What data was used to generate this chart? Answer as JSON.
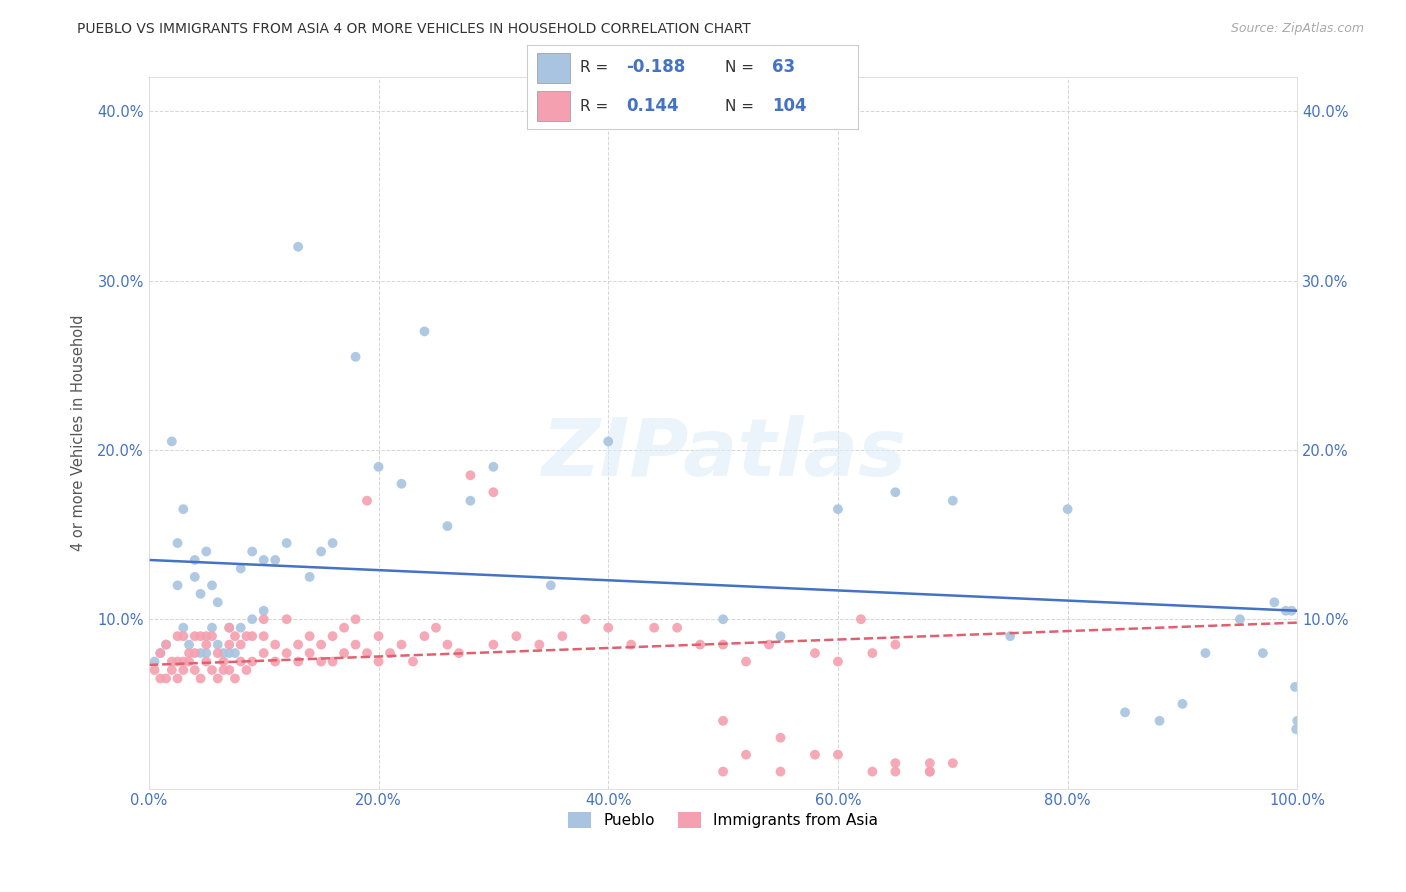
{
  "title": "PUEBLO VS IMMIGRANTS FROM ASIA 4 OR MORE VEHICLES IN HOUSEHOLD CORRELATION CHART",
  "source": "Source: ZipAtlas.com",
  "ylabel": "4 or more Vehicles in Household",
  "watermark": "ZIPatlas",
  "xlim": [
    0.0,
    1.0
  ],
  "ylim": [
    0.0,
    0.42
  ],
  "xtick_vals": [
    0.0,
    0.2,
    0.4,
    0.6,
    0.8,
    1.0
  ],
  "ytick_vals": [
    0.0,
    0.1,
    0.2,
    0.3,
    0.4
  ],
  "xtick_labels": [
    "0.0%",
    "20.0%",
    "40.0%",
    "60.0%",
    "80.0%",
    "100.0%"
  ],
  "ytick_labels": [
    "",
    "10.0%",
    "20.0%",
    "30.0%",
    "40.0%"
  ],
  "pueblo_R": -0.188,
  "pueblo_N": 63,
  "immigrants_R": 0.144,
  "immigrants_N": 104,
  "pueblo_color": "#a8c4e0",
  "immigrants_color": "#f4a0b0",
  "pueblo_line_color": "#4472c4",
  "immigrants_line_color": "#e06070",
  "axis_color": "#4472c4",
  "background_color": "#ffffff",
  "pueblo_line_y0": 0.135,
  "pueblo_line_y1": 0.105,
  "immigrants_line_y0": 0.073,
  "immigrants_line_y1": 0.098,
  "pueblo_x": [
    0.005,
    0.01,
    0.015,
    0.02,
    0.025,
    0.025,
    0.03,
    0.03,
    0.035,
    0.04,
    0.04,
    0.045,
    0.045,
    0.05,
    0.05,
    0.055,
    0.055,
    0.06,
    0.06,
    0.065,
    0.07,
    0.07,
    0.075,
    0.08,
    0.08,
    0.09,
    0.09,
    0.1,
    0.1,
    0.11,
    0.12,
    0.13,
    0.14,
    0.15,
    0.16,
    0.18,
    0.2,
    0.22,
    0.24,
    0.26,
    0.28,
    0.3,
    0.35,
    0.4,
    0.5,
    0.55,
    0.6,
    0.65,
    0.7,
    0.75,
    0.8,
    0.85,
    0.88,
    0.9,
    0.92,
    0.95,
    0.97,
    0.98,
    0.99,
    0.995,
    0.998,
    0.999,
    1.0
  ],
  "pueblo_y": [
    0.075,
    0.08,
    0.085,
    0.205,
    0.145,
    0.12,
    0.165,
    0.095,
    0.085,
    0.135,
    0.125,
    0.115,
    0.08,
    0.14,
    0.08,
    0.12,
    0.095,
    0.11,
    0.085,
    0.08,
    0.08,
    0.095,
    0.08,
    0.13,
    0.095,
    0.14,
    0.1,
    0.135,
    0.105,
    0.135,
    0.145,
    0.32,
    0.125,
    0.14,
    0.145,
    0.255,
    0.19,
    0.18,
    0.27,
    0.155,
    0.17,
    0.19,
    0.12,
    0.205,
    0.1,
    0.09,
    0.165,
    0.175,
    0.17,
    0.09,
    0.165,
    0.045,
    0.04,
    0.05,
    0.08,
    0.1,
    0.08,
    0.11,
    0.105,
    0.105,
    0.06,
    0.035,
    0.04
  ],
  "immigrants_x": [
    0.005,
    0.01,
    0.01,
    0.015,
    0.015,
    0.02,
    0.02,
    0.025,
    0.025,
    0.025,
    0.03,
    0.03,
    0.03,
    0.035,
    0.035,
    0.04,
    0.04,
    0.04,
    0.045,
    0.045,
    0.05,
    0.05,
    0.05,
    0.055,
    0.055,
    0.06,
    0.06,
    0.065,
    0.065,
    0.07,
    0.07,
    0.07,
    0.075,
    0.075,
    0.08,
    0.08,
    0.085,
    0.085,
    0.09,
    0.09,
    0.1,
    0.1,
    0.1,
    0.11,
    0.11,
    0.12,
    0.12,
    0.13,
    0.13,
    0.14,
    0.14,
    0.15,
    0.15,
    0.16,
    0.16,
    0.17,
    0.17,
    0.18,
    0.18,
    0.19,
    0.19,
    0.2,
    0.2,
    0.21,
    0.22,
    0.23,
    0.24,
    0.25,
    0.26,
    0.27,
    0.28,
    0.3,
    0.3,
    0.32,
    0.34,
    0.36,
    0.38,
    0.4,
    0.42,
    0.44,
    0.46,
    0.48,
    0.5,
    0.5,
    0.52,
    0.54,
    0.55,
    0.58,
    0.6,
    0.62,
    0.63,
    0.65,
    0.65,
    0.68,
    0.68,
    0.7,
    0.5,
    0.52,
    0.55,
    0.58,
    0.6,
    0.63,
    0.65,
    0.68
  ],
  "immigrants_y": [
    0.07,
    0.065,
    0.08,
    0.065,
    0.085,
    0.07,
    0.075,
    0.065,
    0.075,
    0.09,
    0.07,
    0.075,
    0.09,
    0.075,
    0.08,
    0.07,
    0.08,
    0.09,
    0.065,
    0.09,
    0.075,
    0.085,
    0.09,
    0.07,
    0.09,
    0.065,
    0.08,
    0.07,
    0.075,
    0.07,
    0.085,
    0.095,
    0.065,
    0.09,
    0.075,
    0.085,
    0.07,
    0.09,
    0.075,
    0.09,
    0.08,
    0.1,
    0.09,
    0.075,
    0.085,
    0.08,
    0.1,
    0.075,
    0.085,
    0.08,
    0.09,
    0.075,
    0.085,
    0.075,
    0.09,
    0.08,
    0.095,
    0.085,
    0.1,
    0.08,
    0.17,
    0.075,
    0.09,
    0.08,
    0.085,
    0.075,
    0.09,
    0.095,
    0.085,
    0.08,
    0.185,
    0.085,
    0.175,
    0.09,
    0.085,
    0.09,
    0.1,
    0.095,
    0.085,
    0.095,
    0.095,
    0.085,
    0.085,
    0.04,
    0.075,
    0.085,
    0.03,
    0.08,
    0.075,
    0.1,
    0.08,
    0.085,
    0.01,
    0.015,
    0.01,
    0.015,
    0.01,
    0.02,
    0.01,
    0.02,
    0.02,
    0.01,
    0.015,
    0.01
  ]
}
